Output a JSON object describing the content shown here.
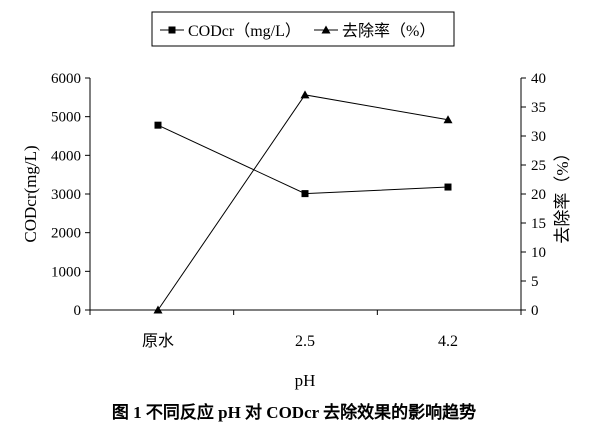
{
  "chart_data": {
    "type": "line",
    "categories": [
      "原水",
      "2.5",
      "4.2"
    ],
    "xlabel": "pH",
    "ylabel_left": "CODcr(mg/L)",
    "ylabel_right": "去除率（%）",
    "left_axis": {
      "range": [
        0,
        6000
      ],
      "ticks": [
        "0",
        "1000",
        "2000",
        "3000",
        "4000",
        "5000",
        "6000"
      ]
    },
    "right_axis": {
      "range": [
        0,
        40
      ],
      "ticks": [
        "0",
        "5",
        "10",
        "15",
        "20",
        "25",
        "30",
        "35",
        "40"
      ]
    },
    "series": [
      {
        "name": "CODcr（mg/L）",
        "axis": "left",
        "marker": "square",
        "values": [
          4780,
          3010,
          3180
        ]
      },
      {
        "name": "去除率（%）",
        "axis": "right",
        "marker": "triangle",
        "values": [
          0,
          37.1,
          32.8
        ]
      }
    ],
    "legend_position": "top",
    "grid": false
  },
  "caption": "图 1  不同反应 pH 对 CODcr 去除效果的影响趋势"
}
